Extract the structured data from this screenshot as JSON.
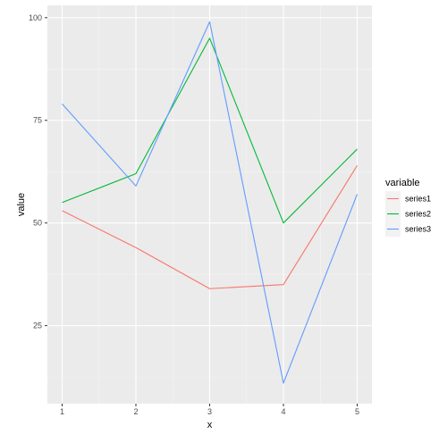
{
  "chart_data": {
    "type": "line",
    "title": "",
    "xlabel": "x",
    "ylabel": "value",
    "x": [
      1,
      2,
      3,
      4,
      5
    ],
    "x_ticks": [
      "1",
      "2",
      "3",
      "4",
      "5"
    ],
    "y_ticks": [
      "25",
      "50",
      "75",
      "100"
    ],
    "xlim": [
      0.8,
      5.2
    ],
    "ylim": [
      6,
      103
    ],
    "grid": true,
    "legend": {
      "title": "variable",
      "placement": "right"
    },
    "series": [
      {
        "name": "series1",
        "color": "#F8766D",
        "values": [
          53,
          44,
          34,
          35,
          64
        ]
      },
      {
        "name": "series2",
        "color": "#00BA38",
        "values": [
          55,
          62,
          95,
          50,
          68
        ]
      },
      {
        "name": "series3",
        "color": "#619CFF",
        "values": [
          79,
          59,
          99,
          11,
          57
        ]
      }
    ],
    "colors": {
      "panel_background": "#EBEBEB",
      "grid_major": "#FFFFFF",
      "grid_minor": "#F5F5F5",
      "tick_text": "#4D4D4D",
      "tick_mark": "#333333",
      "legend_key_background": "#F2F2F2"
    }
  }
}
